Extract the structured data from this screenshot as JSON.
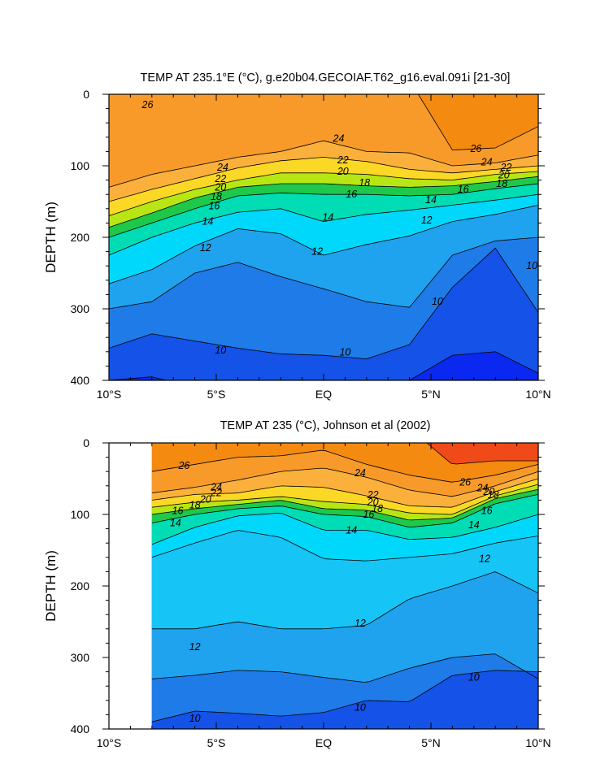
{
  "colors": {
    "levels": [
      {
        "min": 0,
        "max": 9.5,
        "color": "#0a28f0"
      },
      {
        "min": 9.5,
        "max": 10,
        "color": "#1452e8"
      },
      {
        "min": 10,
        "max": 11,
        "color": "#1f7be8"
      },
      {
        "min": 11,
        "max": 12,
        "color": "#1fa3ee"
      },
      {
        "min": 12,
        "max": 13,
        "color": "#16c4f5"
      },
      {
        "min": 13,
        "max": 14,
        "color": "#00d8fb"
      },
      {
        "min": 14,
        "max": 15,
        "color": "#00e6e6"
      },
      {
        "min": 15,
        "max": 16,
        "color": "#00dcb4"
      },
      {
        "min": 16,
        "max": 17,
        "color": "#00d27a"
      },
      {
        "min": 17,
        "max": 18,
        "color": "#1ec84a"
      },
      {
        "min": 18,
        "max": 19,
        "color": "#6cd41e"
      },
      {
        "min": 19,
        "max": 20,
        "color": "#b8e614"
      },
      {
        "min": 20,
        "max": 21,
        "color": "#f0f014"
      },
      {
        "min": 21,
        "max": 22,
        "color": "#fcd826"
      },
      {
        "min": 22,
        "max": 23,
        "color": "#fcbc36"
      },
      {
        "min": 23,
        "max": 24,
        "color": "#fcb03c"
      },
      {
        "min": 24,
        "max": 25,
        "color": "#fba232"
      },
      {
        "min": 25,
        "max": 26,
        "color": "#f89a2a"
      },
      {
        "min": 26,
        "max": 27,
        "color": "#f48a10"
      },
      {
        "min": 27,
        "max": 40,
        "color": "#f04a18"
      }
    ]
  },
  "chart_data": [
    {
      "type": "heatmap",
      "title": "TEMP AT 235.1°E (°C), g.e20b04.GECOIAF.T62_g16.eval.091i [21-30]",
      "ylabel": "DEPTH (m)",
      "xlabel": "",
      "xlim": [
        -10,
        10
      ],
      "ylim": [
        0,
        400
      ],
      "y_reversed": true,
      "xticks": [
        -10,
        -5,
        0,
        5,
        10
      ],
      "xtick_labels": [
        "10°S",
        "5°S",
        "EQ",
        "5°N",
        "10°N"
      ],
      "yticks": [
        0,
        100,
        200,
        300,
        400
      ],
      "ytick_labels": [
        "0",
        "100",
        "200",
        "300",
        "400"
      ],
      "x_data_extent": [
        -10,
        10
      ],
      "isotherm_depths": {
        "x": [
          -10,
          -8,
          -6,
          -4,
          -2,
          0,
          2,
          4,
          6,
          8,
          10
        ],
        "t26": [
          null,
          null,
          null,
          null,
          null,
          null,
          null,
          null,
          78,
          75,
          45
        ],
        "t24": [
          130,
          112,
          100,
          88,
          80,
          65,
          80,
          82,
          100,
          96,
          85
        ],
        "t22": [
          150,
          133,
          118,
          103,
          93,
          88,
          94,
          105,
          110,
          105,
          100
        ],
        "t20": [
          170,
          150,
          133,
          120,
          110,
          110,
          112,
          118,
          120,
          112,
          108
        ],
        "t18": [
          186,
          166,
          145,
          130,
          125,
          125,
          128,
          130,
          128,
          122,
          115
        ],
        "t16": [
          200,
          180,
          160,
          142,
          138,
          140,
          140,
          142,
          140,
          132,
          125
        ],
        "t14": [
          225,
          200,
          180,
          165,
          160,
          178,
          168,
          162,
          155,
          148,
          140
        ],
        "t12": [
          265,
          245,
          212,
          188,
          195,
          225,
          210,
          198,
          178,
          168,
          155
        ],
        "t11": [
          300,
          290,
          250,
          235,
          255,
          272,
          290,
          298,
          225,
          205,
          200
        ],
        "t10": [
          355,
          335,
          345,
          355,
          363,
          365,
          370,
          350,
          270,
          215,
          305
        ],
        "t9": [
          400,
          395,
          410,
          420,
          420,
          420,
          420,
          400,
          365,
          360,
          390
        ]
      },
      "contour_labels": [
        {
          "text": "26",
          "x": -8.2,
          "y": 15
        },
        {
          "text": "24",
          "x": -4.7,
          "y": 102
        },
        {
          "text": "22",
          "x": -4.8,
          "y": 118
        },
        {
          "text": "20",
          "x": -4.8,
          "y": 130
        },
        {
          "text": "18",
          "x": -5.0,
          "y": 143
        },
        {
          "text": "16",
          "x": -5.1,
          "y": 156
        },
        {
          "text": "14",
          "x": -5.4,
          "y": 178
        },
        {
          "text": "12",
          "x": -5.5,
          "y": 215
        },
        {
          "text": "10",
          "x": -4.8,
          "y": 358
        },
        {
          "text": "24",
          "x": 0.7,
          "y": 62
        },
        {
          "text": "22",
          "x": 0.9,
          "y": 92
        },
        {
          "text": "20",
          "x": 0.9,
          "y": 108
        },
        {
          "text": "18",
          "x": 1.9,
          "y": 124
        },
        {
          "text": "16",
          "x": 1.3,
          "y": 140
        },
        {
          "text": "14",
          "x": 0.2,
          "y": 172
        },
        {
          "text": "12",
          "x": -0.3,
          "y": 220
        },
        {
          "text": "10",
          "x": 1.0,
          "y": 361
        },
        {
          "text": "26",
          "x": 7.1,
          "y": 76
        },
        {
          "text": "24",
          "x": 7.6,
          "y": 95
        },
        {
          "text": "22",
          "x": 8.5,
          "y": 102
        },
        {
          "text": "20",
          "x": 8.4,
          "y": 113
        },
        {
          "text": "18",
          "x": 8.3,
          "y": 125
        },
        {
          "text": "16",
          "x": 6.5,
          "y": 133
        },
        {
          "text": "14",
          "x": 5.0,
          "y": 148
        },
        {
          "text": "12",
          "x": 4.8,
          "y": 176
        },
        {
          "text": "10",
          "x": 5.3,
          "y": 290
        },
        {
          "text": "10",
          "x": 9.7,
          "y": 240
        }
      ]
    },
    {
      "type": "heatmap",
      "title": "TEMP AT 235 (°C), Johnson et al (2002)",
      "ylabel": "DEPTH (m)",
      "xlabel": "",
      "xlim": [
        -10,
        10
      ],
      "ylim": [
        0,
        400
      ],
      "y_reversed": true,
      "xticks": [
        -10,
        -5,
        0,
        5,
        10
      ],
      "xtick_labels": [
        "10°S",
        "5°S",
        "EQ",
        "5°N",
        "10°N"
      ],
      "yticks": [
        0,
        100,
        200,
        300,
        400
      ],
      "ytick_labels": [
        "0",
        "100",
        "200",
        "300",
        "400"
      ],
      "x_data_extent": [
        -8,
        10
      ],
      "isotherm_depths": {
        "x": [
          -8,
          -6,
          -4,
          -2,
          0,
          2,
          4,
          6,
          8,
          10
        ],
        "t27": [
          null,
          null,
          null,
          null,
          null,
          null,
          null,
          30,
          25,
          25
        ],
        "t26": [
          40,
          30,
          20,
          18,
          10,
          30,
          45,
          55,
          45,
          30
        ],
        "t24": [
          70,
          62,
          52,
          40,
          35,
          48,
          66,
          75,
          60,
          40
        ],
        "t22": [
          80,
          72,
          70,
          60,
          62,
          74,
          88,
          90,
          68,
          50
        ],
        "t20": [
          90,
          83,
          80,
          75,
          82,
          86,
          98,
          100,
          74,
          58
        ],
        "t18": [
          100,
          92,
          86,
          80,
          92,
          94,
          108,
          105,
          78,
          65
        ],
        "t16": [
          112,
          100,
          92,
          88,
          100,
          103,
          118,
          112,
          85,
          72
        ],
        "t14": [
          142,
          118,
          102,
          98,
          122,
          122,
          135,
          132,
          118,
          100
        ],
        "t13": [
          160,
          140,
          122,
          132,
          162,
          165,
          160,
          155,
          140,
          130
        ],
        "t12": [
          260,
          260,
          250,
          260,
          260,
          255,
          218,
          200,
          180,
          210
        ],
        "t11": [
          330,
          325,
          318,
          320,
          328,
          335,
          315,
          300,
          295,
          330
        ],
        "t10": [
          390,
          375,
          378,
          382,
          377,
          360,
          362,
          325,
          318,
          320
        ]
      },
      "contour_labels": [
        {
          "text": "26",
          "x": -6.5,
          "y": 32
        },
        {
          "text": "24",
          "x": -5.0,
          "y": 62
        },
        {
          "text": "22",
          "x": -5.0,
          "y": 70
        },
        {
          "text": "20",
          "x": -5.5,
          "y": 79
        },
        {
          "text": "18",
          "x": -6.0,
          "y": 87
        },
        {
          "text": "16",
          "x": -6.8,
          "y": 95
        },
        {
          "text": "14",
          "x": -6.9,
          "y": 112
        },
        {
          "text": "12",
          "x": -6.0,
          "y": 285
        },
        {
          "text": "10",
          "x": -6.0,
          "y": 385
        },
        {
          "text": "24",
          "x": 1.7,
          "y": 42
        },
        {
          "text": "22",
          "x": 2.3,
          "y": 73
        },
        {
          "text": "20",
          "x": 2.3,
          "y": 83
        },
        {
          "text": "18",
          "x": 2.5,
          "y": 92
        },
        {
          "text": "16",
          "x": 2.1,
          "y": 100
        },
        {
          "text": "14",
          "x": 1.3,
          "y": 122
        },
        {
          "text": "12",
          "x": 1.7,
          "y": 252
        },
        {
          "text": "10",
          "x": 1.7,
          "y": 370
        },
        {
          "text": "26",
          "x": 6.6,
          "y": 55
        },
        {
          "text": "24",
          "x": 7.4,
          "y": 63
        },
        {
          "text": "20",
          "x": 7.7,
          "y": 68
        },
        {
          "text": "18",
          "x": 7.9,
          "y": 73
        },
        {
          "text": "16",
          "x": 7.6,
          "y": 95
        },
        {
          "text": "14",
          "x": 7.0,
          "y": 115
        },
        {
          "text": "12",
          "x": 7.5,
          "y": 162
        },
        {
          "text": "10",
          "x": 7.0,
          "y": 328
        }
      ]
    }
  ]
}
